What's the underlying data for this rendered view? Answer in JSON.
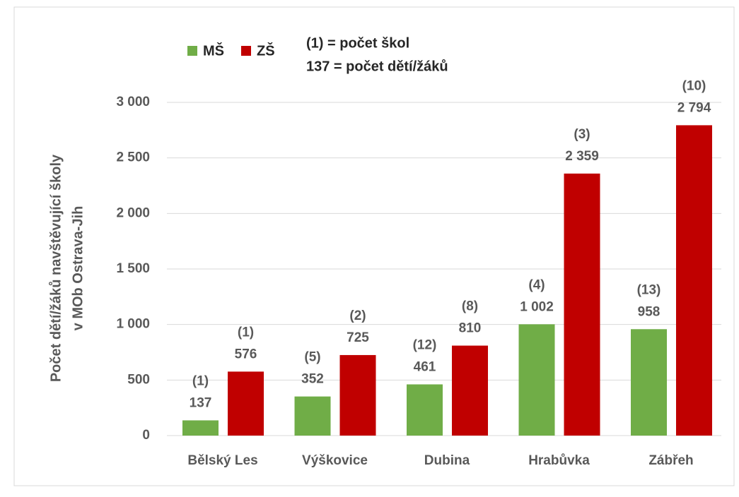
{
  "chart_data": {
    "type": "bar",
    "legend_notes": [
      "(1) = počet škol",
      "137 = počet dětí/žáků"
    ],
    "ylabel": [
      "Počet dětí/žáků navštěvující školy",
      "v MOb Ostrava-Jih"
    ],
    "categories": [
      "Bělský Les",
      "Výškovice",
      "Dubina",
      "Hrabůvka",
      "Zábřeh"
    ],
    "series": [
      {
        "name": "MŠ",
        "color": "#70ad47",
        "values": [
          137,
          352,
          461,
          1002,
          958
        ],
        "value_labels": [
          "137",
          "352",
          "461",
          "1 002",
          "958"
        ],
        "school_labels": [
          "(1)",
          "(5)",
          "(12)",
          "(4)",
          "(13)"
        ]
      },
      {
        "name": "ZŠ",
        "color": "#c00000",
        "values": [
          576,
          725,
          810,
          2359,
          2794
        ],
        "value_labels": [
          "576",
          "725",
          "810",
          "2 359",
          "2 794"
        ],
        "school_labels": [
          "(1)",
          "(2)",
          "(8)",
          "(3)",
          "(10)"
        ]
      }
    ],
    "ylim": [
      0,
      3000
    ],
    "yticks": [
      0,
      500,
      {
        "value": 1000,
        "label": "1 000"
      },
      {
        "value": 1500,
        "label": "1 500"
      },
      {
        "value": 2000,
        "label": "2 000"
      },
      {
        "value": 2500,
        "label": "2 500"
      },
      {
        "value": 3000,
        "label": "3 000"
      }
    ],
    "grid": true
  }
}
